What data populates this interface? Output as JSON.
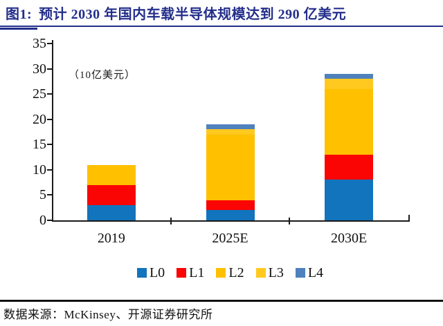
{
  "header": {
    "title_prefix": "图1:",
    "title_text": "预计 2030 年国内车载半导体规模达到 290 亿美元",
    "accent_color": "#232E8B"
  },
  "chart_data": {
    "type": "bar",
    "stacked": true,
    "title": "预计 2030 年国内车载半导体规模达到 290 亿美元",
    "unit_label": "（10亿美元）",
    "categories": [
      "2019",
      "2025E",
      "2030E"
    ],
    "series": [
      {
        "name": "L0",
        "color": "#1274BD",
        "values": [
          3,
          2,
          8
        ]
      },
      {
        "name": "L1",
        "color": "#FA0404",
        "values": [
          4,
          2,
          5
        ]
      },
      {
        "name": "L2",
        "color": "#FFC000",
        "values": [
          4,
          13,
          13
        ]
      },
      {
        "name": "L3",
        "color": "#FFC91F",
        "values": [
          0,
          1,
          2
        ]
      },
      {
        "name": "L4",
        "color": "#4F81BD",
        "values": [
          0,
          1,
          1
        ]
      }
    ],
    "totals": [
      11,
      19,
      29
    ],
    "ylim": [
      0,
      35
    ],
    "ytick_step": 5,
    "yticks": [
      "0",
      "5",
      "10",
      "15",
      "20",
      "25",
      "30",
      "35"
    ],
    "legend_position": "bottom",
    "grid": false
  },
  "footer": {
    "source": "数据来源：McKinsey、开源证券研究所"
  }
}
